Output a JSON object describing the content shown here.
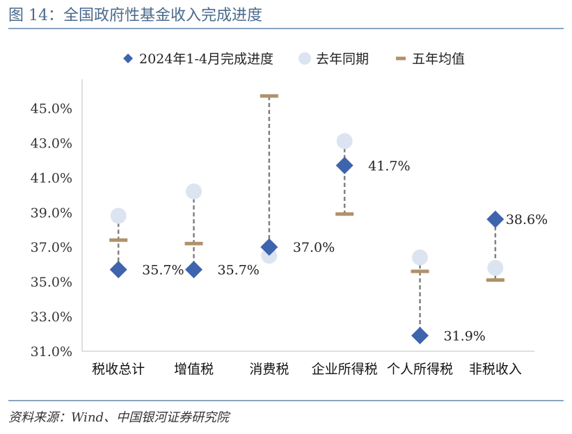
{
  "figure": {
    "title": "图 14：全国政府性基金收入完成进度",
    "source": "资料来源：Wind、中国银河证券研究院"
  },
  "colors": {
    "accent": "#3d64ad",
    "last_year": "#dde4f1",
    "five_year": "#b0916a",
    "connector": "#808080",
    "axis": "#bfbfbf",
    "title": "#4a6a8c"
  },
  "chart_data": {
    "type": "scatter",
    "categories": [
      "税收总计",
      "增值税",
      "消费税",
      "企业所得税",
      "个人所得税",
      "非税收入"
    ],
    "series": [
      {
        "name": "2024年1-4月完成进度",
        "marker": "diamond",
        "values": [
          35.7,
          35.7,
          37.0,
          41.7,
          31.9,
          38.6
        ]
      },
      {
        "name": "去年同期",
        "marker": "circle",
        "values": [
          38.8,
          40.2,
          36.5,
          43.1,
          36.4,
          35.8
        ]
      },
      {
        "name": "五年均值",
        "marker": "dash",
        "values": [
          37.4,
          37.2,
          45.7,
          38.9,
          35.6,
          35.1
        ]
      }
    ],
    "data_labels": [
      "35.7%",
      "35.7%",
      "37.0%",
      "41.7%",
      "31.9%",
      "38.6%"
    ],
    "y_ticks": [
      "31.0%",
      "33.0%",
      "35.0%",
      "37.0%",
      "39.0%",
      "41.0%",
      "43.0%",
      "45.0%"
    ],
    "ylim": [
      31.0,
      46.5
    ],
    "legend_position": "top",
    "grid": false
  }
}
